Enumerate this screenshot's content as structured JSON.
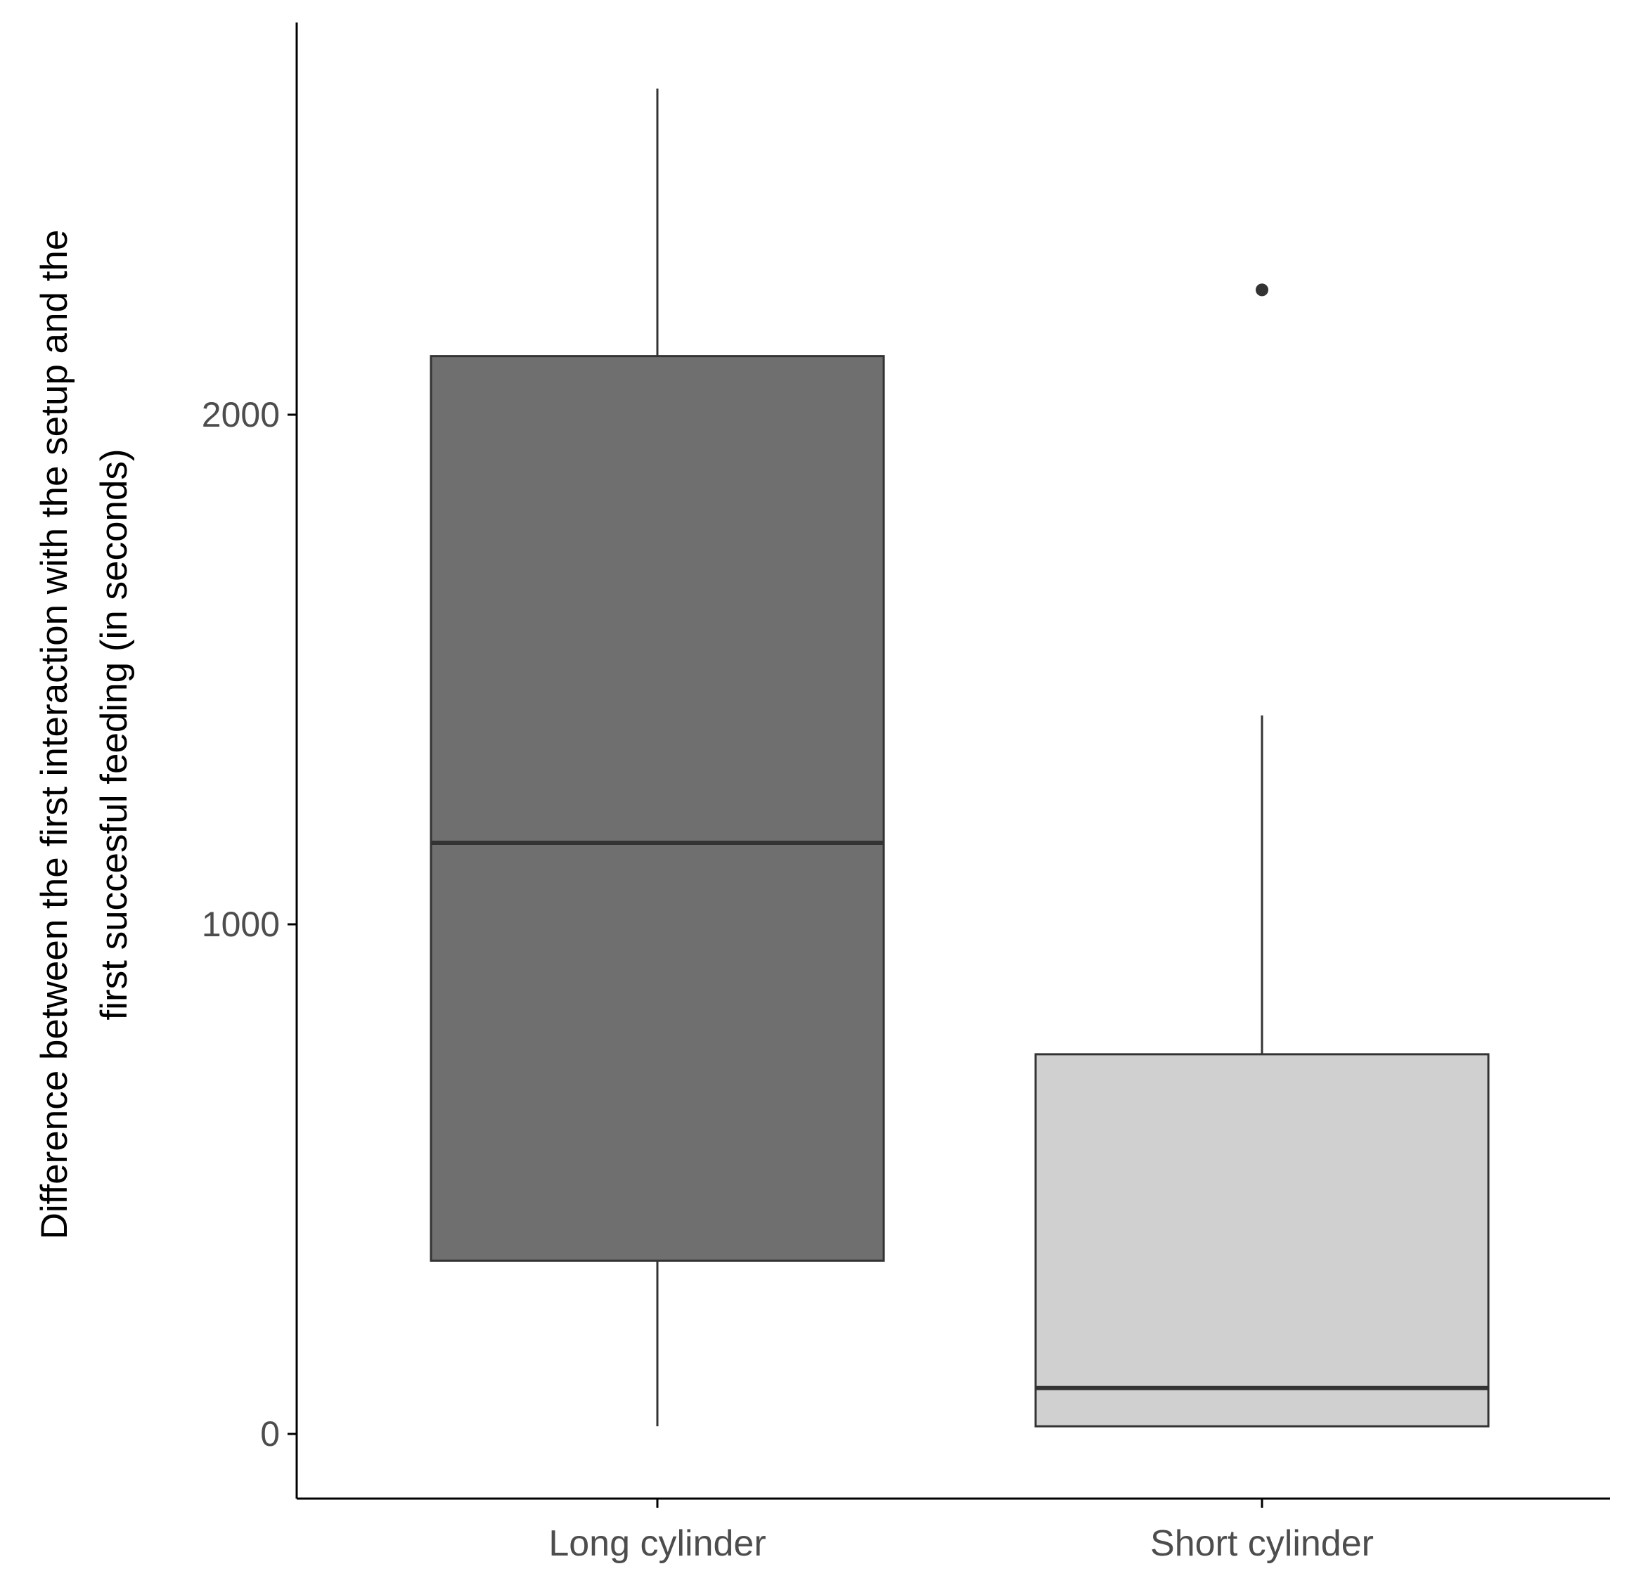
{
  "chart_data": {
    "type": "box",
    "title": "",
    "xlabel": "",
    "ylabel_lines": [
      "Difference between the first interaction with the setup and the",
      "first succesful feeding (in seconds)"
    ],
    "ylim": [
      -130,
      2780
    ],
    "yticks": [
      0,
      1000,
      2000
    ],
    "yticklabels": [
      "0",
      "1000",
      "2000"
    ],
    "categories": [
      "Long cylinder",
      "Short cylinder"
    ],
    "boxes": [
      {
        "category": "Long cylinder",
        "whisker_low": 15,
        "q1": 340,
        "median": 1160,
        "q3": 2115,
        "whisker_high": 2640,
        "outliers": [],
        "fill": "#6f6f6f"
      },
      {
        "category": "Short cylinder",
        "whisker_low": 15,
        "q1": 15,
        "median": 90,
        "q3": 745,
        "whisker_high": 1410,
        "outliers": [
          2245
        ],
        "fill": "#d0d0d0"
      }
    ],
    "grid": false,
    "legend": "none",
    "colors": {
      "axis": "#000000",
      "box_stroke": "#333333",
      "median": "#333333",
      "tick_label": "#4d4d4d",
      "axis_title": "#000000"
    }
  }
}
